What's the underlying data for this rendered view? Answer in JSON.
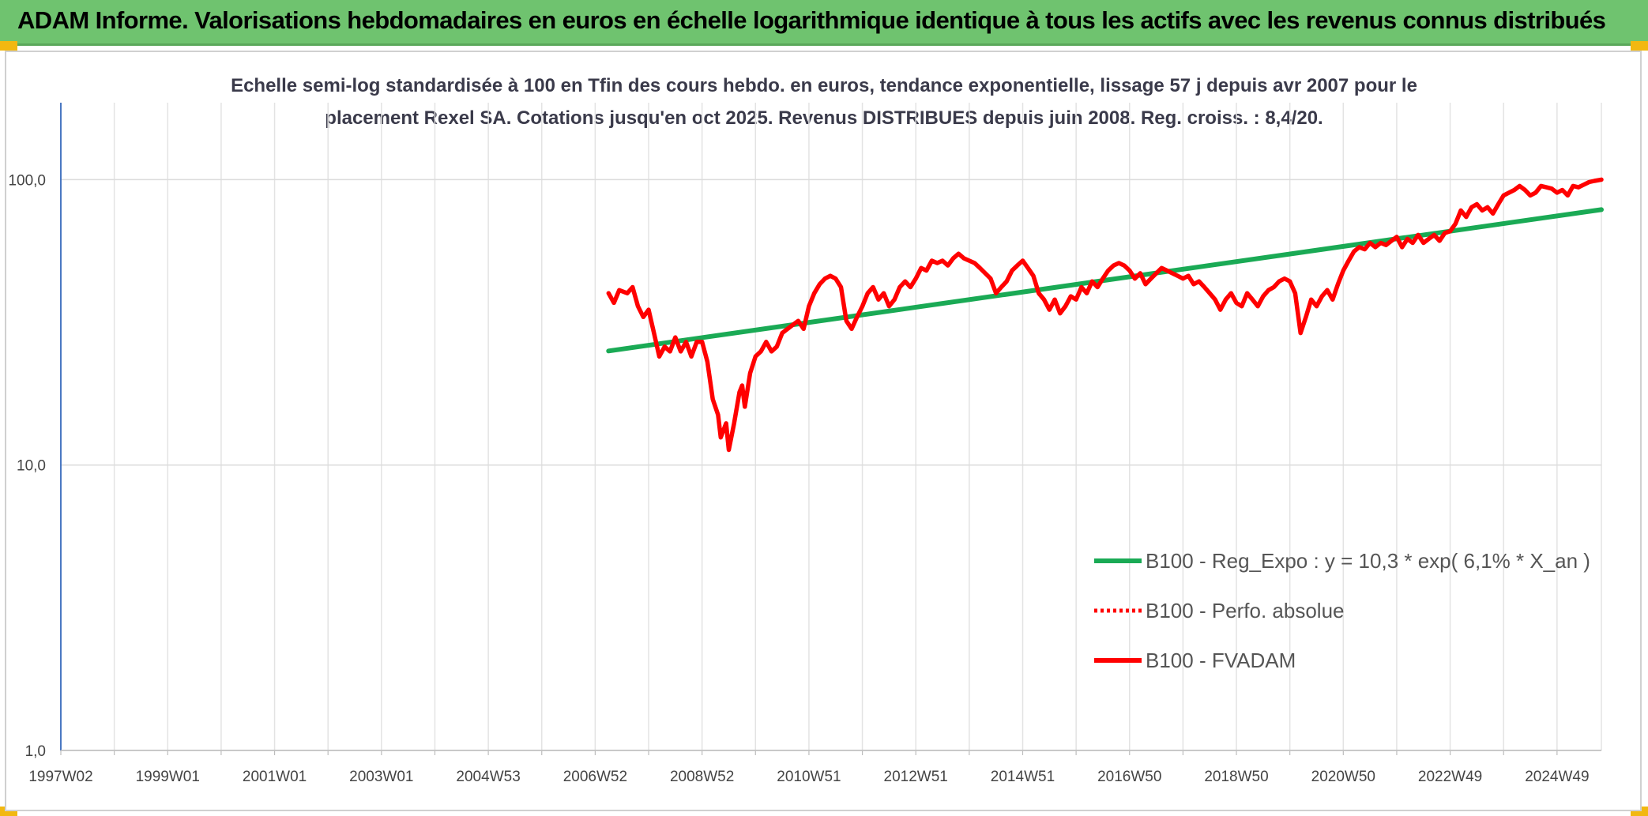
{
  "banner": {
    "title": "ADAM Informe. Valorisations hebdomadaires en euros en échelle logarithmique identique à tous les actifs avec les revenus connus distribués",
    "color": "#6fc36f"
  },
  "chart_data": {
    "type": "line",
    "title_lines": [
      "Echelle semi-log standardisée à 100 en Tfin des cours hebdo. en euros, tendance exponentielle, lissage 57 j depuis avr 2007 pour le",
      "placement Rexel SA. Cotations jusqu'en oct 2025. Revenus DISTRIBUES depuis juin 2008. Reg. croiss. : 8,4/20."
    ],
    "y_scale": "log",
    "ylim": [
      1,
      186
    ],
    "y_ticks": [
      {
        "value": 1,
        "label": "1,0"
      },
      {
        "value": 10,
        "label": "10,0"
      },
      {
        "value": 100,
        "label": "100,0"
      }
    ],
    "xlim": [
      1997.0,
      2025.83
    ],
    "x_ticks": [
      {
        "value": 1997.0,
        "label": "1997W02"
      },
      {
        "value": 1999.0,
        "label": "1999W01"
      },
      {
        "value": 2001.0,
        "label": "2001W01"
      },
      {
        "value": 2003.0,
        "label": "2003W01"
      },
      {
        "value": 2005.0,
        "label": "2004W53"
      },
      {
        "value": 2007.0,
        "label": "2006W52"
      },
      {
        "value": 2009.0,
        "label": "2008W52"
      },
      {
        "value": 2011.0,
        "label": "2010W51"
      },
      {
        "value": 2013.0,
        "label": "2012W51"
      },
      {
        "value": 2015.0,
        "label": "2014W51"
      },
      {
        "value": 2017.0,
        "label": "2016W50"
      },
      {
        "value": 2019.0,
        "label": "2018W50"
      },
      {
        "value": 2021.0,
        "label": "2020W50"
      },
      {
        "value": 2023.0,
        "label": "2022W49"
      },
      {
        "value": 2025.0,
        "label": "2024W49"
      }
    ],
    "grid": true,
    "legend_position": "bottom-right",
    "series": [
      {
        "name": "B100 - Reg_Expo : y = 10,3 * exp( 6,1% *  X_an )",
        "color": "#1aaa55",
        "style": "solid",
        "points": [
          [
            2007.25,
            25.1
          ],
          [
            2025.83,
            78.5
          ]
        ]
      },
      {
        "name": "B100 - Perfo. absolue",
        "color": "#ff0000",
        "style": "dotted",
        "points": []
      },
      {
        "name": "B100 - FVADAM",
        "color": "#ff0000",
        "style": "solid",
        "points": [
          [
            2007.25,
            40
          ],
          [
            2007.35,
            37
          ],
          [
            2007.45,
            41
          ],
          [
            2007.6,
            40
          ],
          [
            2007.7,
            42
          ],
          [
            2007.8,
            36
          ],
          [
            2007.9,
            33
          ],
          [
            2008.0,
            35
          ],
          [
            2008.1,
            29
          ],
          [
            2008.2,
            24
          ],
          [
            2008.3,
            26
          ],
          [
            2008.4,
            25
          ],
          [
            2008.5,
            28
          ],
          [
            2008.6,
            25
          ],
          [
            2008.7,
            27
          ],
          [
            2008.8,
            24
          ],
          [
            2008.9,
            27
          ],
          [
            2009.0,
            27
          ],
          [
            2009.1,
            23
          ],
          [
            2009.2,
            17
          ],
          [
            2009.3,
            15
          ],
          [
            2009.35,
            12.5
          ],
          [
            2009.45,
            14
          ],
          [
            2009.5,
            11.3
          ],
          [
            2009.6,
            14
          ],
          [
            2009.7,
            18
          ],
          [
            2009.75,
            19
          ],
          [
            2009.8,
            16
          ],
          [
            2009.9,
            21
          ],
          [
            2010.0,
            24
          ],
          [
            2010.1,
            25
          ],
          [
            2010.2,
            27
          ],
          [
            2010.3,
            25
          ],
          [
            2010.4,
            26
          ],
          [
            2010.5,
            29
          ],
          [
            2010.6,
            30
          ],
          [
            2010.7,
            31
          ],
          [
            2010.8,
            32
          ],
          [
            2010.9,
            30
          ],
          [
            2011.0,
            36
          ],
          [
            2011.1,
            40
          ],
          [
            2011.2,
            43
          ],
          [
            2011.3,
            45
          ],
          [
            2011.4,
            46
          ],
          [
            2011.5,
            45
          ],
          [
            2011.6,
            42
          ],
          [
            2011.7,
            32
          ],
          [
            2011.8,
            30
          ],
          [
            2011.9,
            33
          ],
          [
            2012.0,
            36
          ],
          [
            2012.1,
            40
          ],
          [
            2012.2,
            42
          ],
          [
            2012.3,
            38
          ],
          [
            2012.4,
            40
          ],
          [
            2012.5,
            36
          ],
          [
            2012.6,
            38
          ],
          [
            2012.7,
            42
          ],
          [
            2012.8,
            44
          ],
          [
            2012.9,
            42
          ],
          [
            2013.0,
            45
          ],
          [
            2013.1,
            49
          ],
          [
            2013.2,
            48
          ],
          [
            2013.3,
            52
          ],
          [
            2013.4,
            51
          ],
          [
            2013.5,
            52
          ],
          [
            2013.6,
            50
          ],
          [
            2013.7,
            53
          ],
          [
            2013.8,
            55
          ],
          [
            2013.9,
            53
          ],
          [
            2014.0,
            52
          ],
          [
            2014.1,
            51
          ],
          [
            2014.2,
            49
          ],
          [
            2014.3,
            47
          ],
          [
            2014.4,
            45
          ],
          [
            2014.5,
            40
          ],
          [
            2014.6,
            42
          ],
          [
            2014.7,
            44
          ],
          [
            2014.8,
            48
          ],
          [
            2014.9,
            50
          ],
          [
            2015.0,
            52
          ],
          [
            2015.1,
            49
          ],
          [
            2015.2,
            46
          ],
          [
            2015.3,
            40
          ],
          [
            2015.4,
            38
          ],
          [
            2015.5,
            35
          ],
          [
            2015.6,
            38
          ],
          [
            2015.7,
            34
          ],
          [
            2015.8,
            36
          ],
          [
            2015.9,
            39
          ],
          [
            2016.0,
            38
          ],
          [
            2016.1,
            42
          ],
          [
            2016.2,
            40
          ],
          [
            2016.3,
            44
          ],
          [
            2016.4,
            42
          ],
          [
            2016.5,
            45
          ],
          [
            2016.6,
            48
          ],
          [
            2016.7,
            50
          ],
          [
            2016.8,
            51
          ],
          [
            2016.9,
            50
          ],
          [
            2017.0,
            48
          ],
          [
            2017.1,
            45
          ],
          [
            2017.2,
            47
          ],
          [
            2017.3,
            43
          ],
          [
            2017.4,
            45
          ],
          [
            2017.5,
            47
          ],
          [
            2017.6,
            49
          ],
          [
            2017.7,
            48
          ],
          [
            2017.8,
            47
          ],
          [
            2017.9,
            46
          ],
          [
            2018.0,
            45
          ],
          [
            2018.1,
            46
          ],
          [
            2018.2,
            43
          ],
          [
            2018.3,
            44
          ],
          [
            2018.4,
            42
          ],
          [
            2018.5,
            40
          ],
          [
            2018.6,
            38
          ],
          [
            2018.7,
            35
          ],
          [
            2018.8,
            38
          ],
          [
            2018.9,
            40
          ],
          [
            2019.0,
            37
          ],
          [
            2019.1,
            36
          ],
          [
            2019.2,
            40
          ],
          [
            2019.3,
            38
          ],
          [
            2019.4,
            36
          ],
          [
            2019.5,
            39
          ],
          [
            2019.6,
            41
          ],
          [
            2019.7,
            42
          ],
          [
            2019.8,
            44
          ],
          [
            2019.9,
            45
          ],
          [
            2020.0,
            44
          ],
          [
            2020.1,
            40
          ],
          [
            2020.2,
            29
          ],
          [
            2020.3,
            33
          ],
          [
            2020.4,
            38
          ],
          [
            2020.5,
            36
          ],
          [
            2020.6,
            39
          ],
          [
            2020.7,
            41
          ],
          [
            2020.8,
            38
          ],
          [
            2020.9,
            43
          ],
          [
            2021.0,
            48
          ],
          [
            2021.1,
            52
          ],
          [
            2021.2,
            56
          ],
          [
            2021.3,
            58
          ],
          [
            2021.4,
            57
          ],
          [
            2021.5,
            60
          ],
          [
            2021.6,
            58
          ],
          [
            2021.7,
            60
          ],
          [
            2021.8,
            59
          ],
          [
            2021.9,
            61
          ],
          [
            2022.0,
            63
          ],
          [
            2022.1,
            58
          ],
          [
            2022.2,
            62
          ],
          [
            2022.3,
            60
          ],
          [
            2022.4,
            64
          ],
          [
            2022.5,
            60
          ],
          [
            2022.6,
            62
          ],
          [
            2022.7,
            64
          ],
          [
            2022.8,
            61
          ],
          [
            2022.9,
            65
          ],
          [
            2023.0,
            66
          ],
          [
            2023.1,
            70
          ],
          [
            2023.2,
            78
          ],
          [
            2023.3,
            74
          ],
          [
            2023.4,
            80
          ],
          [
            2023.5,
            82
          ],
          [
            2023.6,
            78
          ],
          [
            2023.7,
            80
          ],
          [
            2023.8,
            76
          ],
          [
            2023.9,
            82
          ],
          [
            2024.0,
            88
          ],
          [
            2024.1,
            90
          ],
          [
            2024.2,
            92
          ],
          [
            2024.3,
            95
          ],
          [
            2024.4,
            92
          ],
          [
            2024.5,
            88
          ],
          [
            2024.6,
            90
          ],
          [
            2024.7,
            95
          ],
          [
            2024.8,
            94
          ],
          [
            2024.9,
            93
          ],
          [
            2025.0,
            90
          ],
          [
            2025.1,
            92
          ],
          [
            2025.2,
            88
          ],
          [
            2025.3,
            95
          ],
          [
            2025.4,
            94
          ],
          [
            2025.5,
            96
          ],
          [
            2025.6,
            98
          ],
          [
            2025.7,
            99
          ],
          [
            2025.83,
            100
          ]
        ]
      }
    ]
  }
}
